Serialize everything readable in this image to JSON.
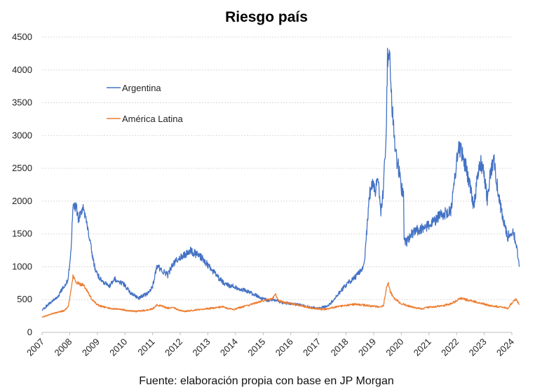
{
  "chart_data": {
    "type": "line",
    "title": "Riesgo país",
    "source": "Fuente: elaboración propia con base en JP Morgan",
    "xlabel": "",
    "ylabel": "",
    "xlim": [
      2007,
      2024
    ],
    "ylim": [
      0,
      4500
    ],
    "yticks": [
      "0",
      "500",
      "1000",
      "1500",
      "2000",
      "2500",
      "3000",
      "3500",
      "4000",
      "4500"
    ],
    "ytick_values": [
      0,
      500,
      1000,
      1500,
      2000,
      2500,
      3000,
      3500,
      4000,
      4500
    ],
    "xticks": [
      "2007",
      "2008",
      "2009",
      "2010",
      "2011",
      "2012",
      "2013",
      "2014",
      "2015",
      "2016",
      "2017",
      "2018",
      "2019",
      "2020",
      "2021",
      "2022",
      "2023",
      "2024"
    ],
    "grid": "horizontal",
    "series": [
      {
        "name": "Argentina",
        "color": "#4472C4",
        "points": [
          [
            2007.0,
            330
          ],
          [
            2007.2,
            420
          ],
          [
            2007.4,
            480
          ],
          [
            2007.6,
            570
          ],
          [
            2007.8,
            700
          ],
          [
            2007.95,
            820
          ],
          [
            2008.05,
            1300
          ],
          [
            2008.12,
            1900
          ],
          [
            2008.22,
            1950
          ],
          [
            2008.32,
            1700
          ],
          [
            2008.45,
            1900
          ],
          [
            2008.6,
            1750
          ],
          [
            2008.75,
            1350
          ],
          [
            2008.9,
            1000
          ],
          [
            2009.05,
            850
          ],
          [
            2009.25,
            760
          ],
          [
            2009.45,
            700
          ],
          [
            2009.6,
            820
          ],
          [
            2009.8,
            780
          ],
          [
            2010.0,
            720
          ],
          [
            2010.2,
            600
          ],
          [
            2010.35,
            560
          ],
          [
            2010.5,
            520
          ],
          [
            2010.65,
            560
          ],
          [
            2010.85,
            600
          ],
          [
            2011.0,
            700
          ],
          [
            2011.15,
            1000
          ],
          [
            2011.35,
            950
          ],
          [
            2011.55,
            870
          ],
          [
            2011.75,
            1050
          ],
          [
            2011.95,
            1120
          ],
          [
            2012.15,
            1180
          ],
          [
            2012.35,
            1250
          ],
          [
            2012.55,
            1200
          ],
          [
            2012.75,
            1150
          ],
          [
            2012.95,
            1050
          ],
          [
            2013.15,
            950
          ],
          [
            2013.35,
            850
          ],
          [
            2013.55,
            760
          ],
          [
            2013.75,
            720
          ],
          [
            2013.95,
            700
          ],
          [
            2014.15,
            650
          ],
          [
            2014.35,
            640
          ],
          [
            2014.55,
            600
          ],
          [
            2014.75,
            560
          ],
          [
            2014.95,
            520
          ],
          [
            2015.15,
            490
          ],
          [
            2015.35,
            500
          ],
          [
            2015.55,
            470
          ],
          [
            2015.75,
            450
          ],
          [
            2015.95,
            440
          ],
          [
            2016.15,
            430
          ],
          [
            2016.35,
            420
          ],
          [
            2016.55,
            400
          ],
          [
            2016.75,
            380
          ],
          [
            2016.95,
            370
          ],
          [
            2017.15,
            380
          ],
          [
            2017.35,
            400
          ],
          [
            2017.55,
            500
          ],
          [
            2017.75,
            600
          ],
          [
            2017.95,
            700
          ],
          [
            2018.15,
            780
          ],
          [
            2018.35,
            850
          ],
          [
            2018.55,
            950
          ],
          [
            2018.65,
            1000
          ],
          [
            2018.75,
            1550
          ],
          [
            2018.85,
            2100
          ],
          [
            2018.95,
            2300
          ],
          [
            2019.05,
            2150
          ],
          [
            2019.15,
            2400
          ],
          [
            2019.25,
            1800
          ],
          [
            2019.35,
            2150
          ],
          [
            2019.45,
            3000
          ],
          [
            2019.5,
            4200
          ],
          [
            2019.55,
            4350
          ],
          [
            2019.62,
            3800
          ],
          [
            2019.7,
            3200
          ],
          [
            2019.8,
            2700
          ],
          [
            2019.9,
            2500
          ],
          [
            2020.0,
            2200
          ],
          [
            2020.08,
            2100
          ],
          [
            2020.1,
            1400
          ],
          [
            2020.2,
            1380
          ],
          [
            2020.35,
            1480
          ],
          [
            2020.5,
            1550
          ],
          [
            2020.65,
            1560
          ],
          [
            2020.8,
            1600
          ],
          [
            2020.95,
            1620
          ],
          [
            2021.1,
            1700
          ],
          [
            2021.25,
            1720
          ],
          [
            2021.4,
            1780
          ],
          [
            2021.6,
            1820
          ],
          [
            2021.8,
            1850
          ],
          [
            2021.9,
            2200
          ],
          [
            2022.0,
            2600
          ],
          [
            2022.08,
            2850
          ],
          [
            2022.2,
            2700
          ],
          [
            2022.35,
            2500
          ],
          [
            2022.5,
            2200
          ],
          [
            2022.62,
            1900
          ],
          [
            2022.75,
            2350
          ],
          [
            2022.88,
            2600
          ],
          [
            2023.0,
            2400
          ],
          [
            2023.12,
            2000
          ],
          [
            2023.22,
            2400
          ],
          [
            2023.35,
            2650
          ],
          [
            2023.45,
            2300
          ],
          [
            2023.55,
            2000
          ],
          [
            2023.65,
            1800
          ],
          [
            2023.75,
            1600
          ],
          [
            2023.85,
            1450
          ],
          [
            2023.95,
            1550
          ],
          [
            2024.05,
            1550
          ],
          [
            2024.12,
            1400
          ],
          [
            2024.2,
            1250
          ],
          [
            2024.27,
            1000
          ]
        ]
      },
      {
        "name": "América Latina",
        "color": "#ED7D31",
        "points": [
          [
            2007.0,
            230
          ],
          [
            2007.2,
            260
          ],
          [
            2007.4,
            290
          ],
          [
            2007.6,
            310
          ],
          [
            2007.8,
            330
          ],
          [
            2007.95,
            400
          ],
          [
            2008.05,
            650
          ],
          [
            2008.12,
            850
          ],
          [
            2008.2,
            780
          ],
          [
            2008.35,
            740
          ],
          [
            2008.5,
            720
          ],
          [
            2008.65,
            620
          ],
          [
            2008.8,
            500
          ],
          [
            2009.0,
            420
          ],
          [
            2009.2,
            390
          ],
          [
            2009.4,
            370
          ],
          [
            2009.6,
            360
          ],
          [
            2009.8,
            350
          ],
          [
            2010.0,
            340
          ],
          [
            2010.2,
            330
          ],
          [
            2010.4,
            320
          ],
          [
            2010.6,
            330
          ],
          [
            2010.8,
            340
          ],
          [
            2011.0,
            360
          ],
          [
            2011.15,
            420
          ],
          [
            2011.35,
            400
          ],
          [
            2011.55,
            370
          ],
          [
            2011.75,
            380
          ],
          [
            2011.95,
            340
          ],
          [
            2012.15,
            320
          ],
          [
            2012.35,
            330
          ],
          [
            2012.55,
            340
          ],
          [
            2012.75,
            350
          ],
          [
            2012.95,
            360
          ],
          [
            2013.15,
            370
          ],
          [
            2013.35,
            380
          ],
          [
            2013.55,
            390
          ],
          [
            2013.75,
            360
          ],
          [
            2013.95,
            350
          ],
          [
            2014.15,
            380
          ],
          [
            2014.35,
            400
          ],
          [
            2014.55,
            420
          ],
          [
            2014.75,
            450
          ],
          [
            2014.95,
            480
          ],
          [
            2015.15,
            490
          ],
          [
            2015.35,
            520
          ],
          [
            2015.45,
            580
          ],
          [
            2015.55,
            480
          ],
          [
            2015.75,
            460
          ],
          [
            2015.95,
            440
          ],
          [
            2016.15,
            430
          ],
          [
            2016.35,
            410
          ],
          [
            2016.55,
            390
          ],
          [
            2016.75,
            370
          ],
          [
            2016.95,
            360
          ],
          [
            2017.15,
            350
          ],
          [
            2017.35,
            360
          ],
          [
            2017.55,
            380
          ],
          [
            2017.75,
            400
          ],
          [
            2017.95,
            410
          ],
          [
            2018.15,
            420
          ],
          [
            2018.35,
            430
          ],
          [
            2018.55,
            420
          ],
          [
            2018.75,
            410
          ],
          [
            2018.95,
            400
          ],
          [
            2019.15,
            390
          ],
          [
            2019.35,
            400
          ],
          [
            2019.45,
            650
          ],
          [
            2019.52,
            760
          ],
          [
            2019.6,
            620
          ],
          [
            2019.75,
            520
          ],
          [
            2019.95,
            450
          ],
          [
            2020.15,
            420
          ],
          [
            2020.35,
            390
          ],
          [
            2020.55,
            370
          ],
          [
            2020.75,
            360
          ],
          [
            2020.95,
            380
          ],
          [
            2021.15,
            390
          ],
          [
            2021.35,
            400
          ],
          [
            2021.55,
            410
          ],
          [
            2021.75,
            430
          ],
          [
            2021.95,
            470
          ],
          [
            2022.15,
            520
          ],
          [
            2022.35,
            500
          ],
          [
            2022.55,
            480
          ],
          [
            2022.75,
            460
          ],
          [
            2022.95,
            440
          ],
          [
            2023.15,
            410
          ],
          [
            2023.35,
            400
          ],
          [
            2023.55,
            390
          ],
          [
            2023.75,
            380
          ],
          [
            2023.85,
            360
          ],
          [
            2023.95,
            420
          ],
          [
            2024.05,
            470
          ],
          [
            2024.15,
            500
          ],
          [
            2024.27,
            430
          ]
        ]
      }
    ],
    "legend": [
      {
        "label": "Argentina",
        "color": "#4472C4"
      },
      {
        "label": "América Latina",
        "color": "#ED7D31"
      }
    ]
  }
}
